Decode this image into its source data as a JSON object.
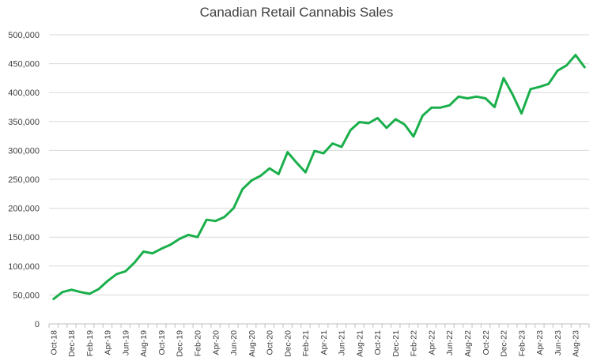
{
  "chart_data": {
    "type": "line",
    "title": "Canadian Retail Cannabis Sales",
    "xlabel": "",
    "ylabel": "",
    "ylim": [
      0,
      500000
    ],
    "yticks": [
      0,
      50000,
      100000,
      150000,
      200000,
      250000,
      300000,
      350000,
      400000,
      450000,
      500000
    ],
    "ytick_labels": [
      "0",
      "50,000",
      "100,000",
      "150,000",
      "200,000",
      "250,000",
      "300,000",
      "350,000",
      "400,000",
      "450,000",
      "500,000"
    ],
    "grid": true,
    "legend": "none",
    "line_color": "#1aaf4b",
    "x": [
      "Oct-18",
      "Nov-18",
      "Dec-18",
      "Jan-19",
      "Feb-19",
      "Mar-19",
      "Apr-19",
      "May-19",
      "Jun-19",
      "Jul-19",
      "Aug-19",
      "Sep-19",
      "Oct-19",
      "Nov-19",
      "Dec-19",
      "Jan-20",
      "Feb-20",
      "Mar-20",
      "Apr-20",
      "May-20",
      "Jun-20",
      "Jul-20",
      "Aug-20",
      "Sep-20",
      "Oct-20",
      "Nov-20",
      "Dec-20",
      "Jan-21",
      "Feb-21",
      "Mar-21",
      "Apr-21",
      "May-21",
      "Jun-21",
      "Jul-21",
      "Aug-21",
      "Sep-21",
      "Oct-21",
      "Nov-21",
      "Dec-21",
      "Jan-22",
      "Feb-22",
      "Mar-22",
      "Apr-22",
      "May-22",
      "Jun-22",
      "Jul-22",
      "Aug-22",
      "Sep-22",
      "Oct-22",
      "Nov-22",
      "Dec-22",
      "Jan-23",
      "Feb-23",
      "Mar-23",
      "Apr-23",
      "May-23",
      "Jun-23",
      "Jul-23",
      "Aug-23",
      "Sep-23"
    ],
    "x_tick_labels": [
      "Oct-18",
      "Dec-18",
      "Feb-19",
      "Apr-19",
      "Jun-19",
      "Aug-19",
      "Oct-19",
      "Dec-19",
      "Feb-20",
      "Apr-20",
      "Jun-20",
      "Aug-20",
      "Oct-20",
      "Dec-20",
      "Feb-21",
      "Apr-21",
      "Jun-21",
      "Aug-21",
      "Oct-21",
      "Dec-21",
      "Feb-22",
      "Apr-22",
      "Jun-22",
      "Aug-22",
      "Oct-22",
      "Dec-22",
      "Feb-23",
      "Apr-23",
      "Jun-23",
      "Aug-23"
    ],
    "series": [
      {
        "values": [
          43000,
          55000,
          59000,
          55000,
          52000,
          60000,
          74000,
          86000,
          91000,
          106000,
          125000,
          122000,
          130000,
          137000,
          147000,
          154000,
          150000,
          180000,
          178000,
          185000,
          200000,
          233000,
          248000,
          256000,
          269000,
          259000,
          297000,
          279000,
          262000,
          299000,
          295000,
          312000,
          306000,
          335000,
          349000,
          347000,
          356000,
          339000,
          354000,
          345000,
          324000,
          360000,
          374000,
          374000,
          378000,
          393000,
          390000,
          393000,
          390000,
          375000,
          425000,
          397000,
          364000,
          406000,
          410000,
          415000,
          438000,
          447000,
          465000,
          444000
        ]
      }
    ]
  }
}
